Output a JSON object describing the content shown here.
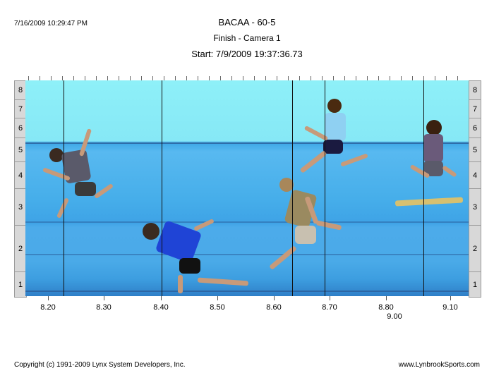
{
  "header": {
    "datetime": "7/16/2009 10:29:47 PM",
    "event": "BACAA - 60-5",
    "camera": "Finish - Camera 1",
    "start": "Start: 7/9/2009 19:37:36.73"
  },
  "lanes": [
    "8",
    "7",
    "6",
    "5",
    "4",
    "3",
    "2",
    "1"
  ],
  "axis": {
    "labels": [
      "8.20",
      "8.30",
      "8.40",
      "8.50",
      "8.60",
      "8.70",
      "8.80",
      "9.10"
    ],
    "second_row": [
      "9.00"
    ]
  },
  "footer": {
    "copyright": "Copyright (c) 1991-2009 Lynx System Developers, Inc.",
    "site": "www.LynbrookSports.com"
  }
}
